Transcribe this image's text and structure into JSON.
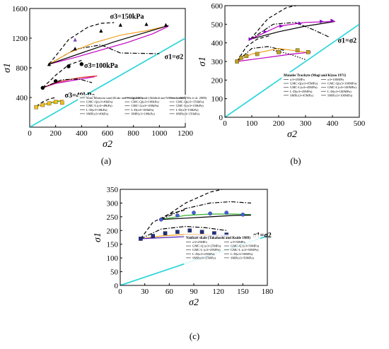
{
  "chart_data": [
    {
      "type": "line",
      "panel_label": "(a)",
      "xlabel": "σ2",
      "ylabel": "σ1",
      "xlim": [
        0,
        1200
      ],
      "ylim": [
        0,
        1600
      ],
      "xticks": [
        "0",
        "200",
        "400",
        "600",
        "800",
        "1000",
        "1200"
      ],
      "yticks": [
        "400",
        "800",
        "1200",
        "1600"
      ],
      "xtick_values": [
        0,
        200,
        400,
        600,
        800,
        1000,
        1200
      ],
      "ytick_values": [
        400,
        800,
        1200,
        1600
      ],
      "annotations": [
        {
          "text": "σ3=150kPa",
          "x": 620,
          "y": 1460
        },
        {
          "text": "σ3=100kPa",
          "x": 420,
          "y": 800
        },
        {
          "text": "σ3=49kPa",
          "x": 270,
          "y": 400
        },
        {
          "text": "σ1=σ2",
          "x": 1040,
          "y": 920
        }
      ],
      "legend": [
        "Sonu Monteau sand (Kukr and Wang 2005)",
        "Ottawa sand (Abbhidi and Williams 2005)",
        "Gravel (Wu et al. 2008)",
        "GMC-Q(σ3=49kPa)",
        "GMC-Q(σ3=100kPa)",
        "GMC-Q(σ3=150kPa)",
        "GMC-L(σ3=49kPa)",
        "GMC-L(σ3=100kPa)",
        "GMC-L(σ3=150kPa)",
        "L-D(σ3=49kPa)",
        "L-D(σ3=100kPa)",
        "L-D(σ3=150kPa)",
        "SMP(σ3=49kPa)",
        "SMP(σ3=100kPa)",
        "SMP(σ3=150kPa)"
      ],
      "identity_line": {
        "name": "σ1=σ2",
        "color": "#33d6dc"
      },
      "series": [
        {
          "style": "dashdot",
          "color": "#000000",
          "x": [
            150,
            350,
            550,
            700,
            1000
          ],
          "y": [
            850,
            1050,
            1110,
            1000,
            990
          ]
        },
        {
          "style": "dashed",
          "color": "#000000",
          "x": [
            150,
            300,
            450,
            550,
            650
          ],
          "y": [
            850,
            1180,
            1350,
            1400,
            1410
          ]
        },
        {
          "style": "solid",
          "color": "#f0a020",
          "x": [
            150,
            300,
            500,
            700,
            900,
            1050
          ],
          "y": [
            850,
            1000,
            1140,
            1240,
            1300,
            1360
          ]
        },
        {
          "style": "solid",
          "color": "#c000c0",
          "x": [
            150,
            350,
            550,
            750,
            950,
            1070
          ],
          "y": [
            850,
            940,
            1040,
            1140,
            1260,
            1360
          ]
        },
        {
          "style": "solid",
          "color": "#000000",
          "x": [
            150,
            400,
            650,
            900,
            1070
          ],
          "y": [
            850,
            1000,
            1150,
            1280,
            1370
          ]
        },
        {
          "style": "solid",
          "color": "#c000c0",
          "x": [
            100,
            200,
            300,
            400,
            500
          ],
          "y": [
            530,
            590,
            620,
            650,
            680
          ]
        },
        {
          "style": "solid",
          "color": "#e02020",
          "x": [
            100,
            200,
            300,
            400,
            520
          ],
          "y": [
            530,
            600,
            640,
            670,
            690
          ]
        },
        {
          "style": "dashed",
          "color": "#000000",
          "x": [
            100,
            200,
            300,
            400
          ],
          "y": [
            530,
            700,
            840,
            900
          ]
        },
        {
          "style": "dashdot",
          "color": "#000000",
          "x": [
            100,
            250,
            380,
            480
          ],
          "y": [
            530,
            640,
            650,
            600
          ]
        },
        {
          "style": "solid",
          "color": "#30c030",
          "x": [
            50,
            100,
            150,
            200,
            250
          ],
          "y": [
            280,
            300,
            320,
            340,
            350
          ]
        },
        {
          "style": "solid",
          "color": "#f0a020",
          "x": [
            50,
            100,
            150,
            200,
            260
          ],
          "y": [
            280,
            300,
            330,
            350,
            370
          ]
        },
        {
          "style": "dashed",
          "color": "#000000",
          "x": [
            50,
            100,
            150,
            200
          ],
          "y": [
            280,
            340,
            380,
            400
          ]
        }
      ],
      "markers": [
        {
          "shape": "triangle",
          "color": "#000000",
          "x": [
            150,
            350,
            550,
            700,
            900,
            1050
          ],
          "y": [
            850,
            1060,
            1300,
            1380,
            1390,
            1380
          ]
        },
        {
          "shape": "triangle",
          "color": "#8040c0",
          "x": [
            350
          ],
          "y": [
            1180
          ]
        },
        {
          "shape": "circle",
          "color": "#000000",
          "x": [
            100,
            200,
            300,
            400
          ],
          "y": [
            530,
            620,
            820,
            850
          ]
        },
        {
          "shape": "square",
          "color": "#f0c020",
          "x": [
            50,
            100,
            150,
            200,
            250
          ],
          "y": [
            270,
            300,
            320,
            340,
            330
          ]
        }
      ]
    },
    {
      "type": "line",
      "panel_label": "(b)",
      "xlabel": "σ2",
      "ylabel": "σ1",
      "xlim": [
        0,
        500
      ],
      "ylim": [
        0,
        600
      ],
      "xticks": [
        "0",
        "100",
        "200",
        "300",
        "400",
        "500"
      ],
      "yticks": [
        "0",
        "100",
        "200",
        "300",
        "400",
        "500",
        "600"
      ],
      "xtick_values": [
        0,
        100,
        200,
        300,
        400,
        500
      ],
      "ytick_values": [
        0,
        100,
        200,
        300,
        400,
        500,
        600
      ],
      "annotations": [
        {
          "text": "σ1=σ2",
          "x": 420,
          "y": 400
        }
      ],
      "legend_title": "Manabe Trachyte (Mogi and Kiyoo 1971)",
      "legend": [
        "σ3=45MPa",
        "σ3=100MPa",
        "GMC-Q(σ3=45MPa)",
        "GMC-Q(σ3=100MPa)",
        "GMC-L(σ3=45MPa)",
        "GMC-L(σ3=100MPa)",
        "L-D(σ3=45MPa)",
        "L-D(σ3=100MPa)",
        "SMP(σ3=45MPa)",
        "SMP(σ3=100MPa)"
      ],
      "identity_line": {
        "name": "σ1=σ2",
        "color": "#33d6dc"
      },
      "series": [
        {
          "style": "dashed",
          "color": "#000000",
          "x": [
            95,
            160,
            230,
            300
          ],
          "y": [
            420,
            530,
            590,
            610
          ]
        },
        {
          "style": "dashdot",
          "color": "#000000",
          "x": [
            95,
            180,
            260,
            330,
            390
          ],
          "y": [
            420,
            500,
            510,
            470,
            430
          ]
        },
        {
          "style": "solid",
          "color": "#000000",
          "x": [
            95,
            200,
            300,
            410
          ],
          "y": [
            420,
            460,
            490,
            515
          ]
        },
        {
          "style": "solid",
          "color": "#c000c0",
          "x": [
            95,
            200,
            300,
            410
          ],
          "y": [
            420,
            490,
            510,
            515
          ]
        },
        {
          "style": "dashed",
          "color": "#000000",
          "x": [
            45,
            80,
            120,
            170
          ],
          "y": [
            300,
            380,
            420,
            440
          ]
        },
        {
          "style": "dashdot",
          "color": "#000000",
          "x": [
            45,
            100,
            160,
            220
          ],
          "y": [
            300,
            370,
            380,
            360
          ]
        },
        {
          "style": "solid",
          "color": "#f0a020",
          "x": [
            45,
            100,
            200,
            300
          ],
          "y": [
            300,
            340,
            370,
            350
          ]
        },
        {
          "style": "solid",
          "color": "#c000c0",
          "x": [
            45,
            150,
            250,
            320
          ],
          "y": [
            300,
            320,
            340,
            350
          ]
        },
        {
          "style": "dotted",
          "color": "#000000",
          "x": [
            180,
            240,
            300
          ],
          "y": [
            360,
            340,
            310
          ]
        }
      ],
      "markers": [
        {
          "shape": "triangle-right",
          "color": "#8000c0",
          "x": [
            95,
            150,
            210,
            280,
            360,
            400
          ],
          "y": [
            420,
            460,
            490,
            505,
            515,
            520
          ]
        },
        {
          "shape": "square",
          "color": "#c0a020",
          "x": [
            45,
            60,
            80,
            120,
            200,
            270,
            310
          ],
          "y": [
            300,
            320,
            330,
            340,
            350,
            360,
            350
          ]
        }
      ]
    },
    {
      "type": "line",
      "panel_label": "(c)",
      "xlabel": "σ2",
      "ylabel": "σ1",
      "xlim": [
        0,
        180
      ],
      "ylim": [
        0,
        350
      ],
      "xticks": [
        "0",
        "30",
        "60",
        "90",
        "120",
        "150",
        "180"
      ],
      "yticks": [
        "0",
        "50",
        "100",
        "150",
        "200",
        "250",
        "300",
        "350"
      ],
      "xtick_values": [
        0,
        30,
        60,
        90,
        120,
        150,
        180
      ],
      "ytick_values": [
        0,
        50,
        100,
        150,
        200,
        250,
        300,
        350
      ],
      "annotations": [
        {
          "text": "σ1=σ2",
          "x": 162,
          "y": 175
        }
      ],
      "legend_title": "Vaubart shale (Takahashi and Koide 1989)",
      "legend": [
        "σ3=25MPa",
        "σ3=50MPa",
        "GMC-Q (σ3=25MPa)",
        "GMC-Q (σ3=50MPa)",
        "GMC-L (σ3=25MPa)",
        "GMC-L (σ3=50MPa)",
        "L-D(σ3=25MPa)",
        "L-D(σ3=50MPa)",
        "SMP(σ3=25MPa)",
        "SMP(σ3=50MPa)"
      ],
      "identity_line": {
        "name": "σ1=σ2",
        "color": "#33d6dc"
      },
      "series": [
        {
          "style": "dashed",
          "color": "#000000",
          "x": [
            50,
            80,
            110,
            140
          ],
          "y": [
            240,
            300,
            340,
            360
          ]
        },
        {
          "style": "dashdot",
          "color": "#000000",
          "x": [
            50,
            80,
            110,
            135,
            160
          ],
          "y": [
            240,
            280,
            300,
            305,
            300
          ]
        },
        {
          "style": "solid",
          "color": "#30b030",
          "x": [
            50,
            80,
            110,
            140,
            160
          ],
          "y": [
            240,
            255,
            260,
            260,
            258
          ]
        },
        {
          "style": "solid",
          "color": "#000000",
          "x": [
            50,
            80,
            110,
            140,
            160
          ],
          "y": [
            240,
            245,
            250,
            255,
            256
          ]
        },
        {
          "style": "dashed",
          "color": "#000000",
          "x": [
            25,
            40,
            60,
            80
          ],
          "y": [
            170,
            230,
            260,
            275
          ]
        },
        {
          "style": "dashdot",
          "color": "#000000",
          "x": [
            25,
            50,
            80,
            105,
            130
          ],
          "y": [
            170,
            205,
            215,
            210,
            200
          ]
        },
        {
          "style": "solid",
          "color": "#f0a020",
          "x": [
            25,
            50,
            75,
            100,
            130
          ],
          "y": [
            170,
            180,
            185,
            185,
            182
          ]
        },
        {
          "style": "solid",
          "color": "#5020c0",
          "x": [
            25,
            60,
            95,
            130
          ],
          "y": [
            170,
            175,
            180,
            183
          ]
        }
      ],
      "markers": [
        {
          "shape": "square",
          "color": "#203080",
          "x": [
            25,
            40,
            55,
            70,
            85,
            100,
            115,
            130
          ],
          "y": [
            170,
            180,
            190,
            195,
            200,
            195,
            190,
            185
          ]
        },
        {
          "shape": "circle",
          "color": "#4060e0",
          "x": [
            50,
            70,
            90,
            110,
            130,
            150
          ],
          "y": [
            240,
            255,
            265,
            262,
            265,
            258
          ]
        }
      ]
    }
  ]
}
